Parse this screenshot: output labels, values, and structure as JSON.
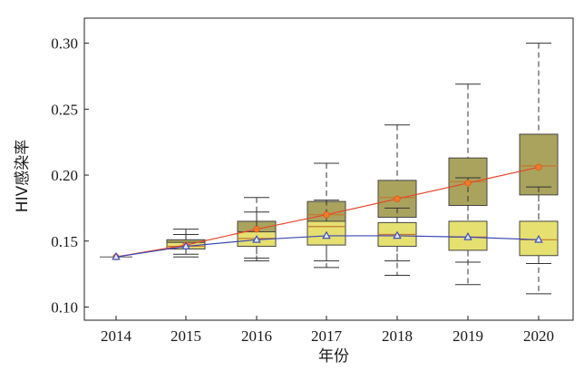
{
  "chart_data": {
    "type": "box",
    "xlabel": "年份",
    "ylabel": "HIV感染率",
    "categories": [
      "2014",
      "2015",
      "2016",
      "2017",
      "2018",
      "2019",
      "2020"
    ],
    "ylim": [
      0.09,
      0.319
    ],
    "yticks": [
      0.1,
      0.15,
      0.2,
      0.25,
      0.3
    ],
    "ytick_labels": [
      "0.10",
      "0.15",
      "0.20",
      "0.25",
      "0.30"
    ],
    "grid": false,
    "box_groups": [
      {
        "name": "",
        "color": "#a9a35e",
        "boxes": [
          null,
          {
            "whisker_low": 0.138,
            "q1": 0.144,
            "median": 0.147,
            "q3": 0.151,
            "whisker_high": 0.159
          },
          {
            "whisker_low": 0.135,
            "q1": 0.151,
            "median": 0.157,
            "q3": 0.165,
            "whisker_high": 0.183
          },
          {
            "whisker_low": 0.135,
            "q1": 0.157,
            "median": 0.17,
            "q3": 0.18,
            "whisker_high": 0.209
          },
          {
            "whisker_low": 0.124,
            "q1": 0.168,
            "median": 0.183,
            "q3": 0.196,
            "whisker_high": 0.238
          },
          {
            "whisker_low": 0.117,
            "q1": 0.177,
            "median": 0.195,
            "q3": 0.213,
            "whisker_high": 0.269
          },
          {
            "whisker_low": 0.11,
            "q1": 0.185,
            "median": 0.207,
            "q3": 0.231,
            "whisker_high": 0.3
          }
        ]
      },
      {
        "name": "",
        "color": "#e5e070",
        "boxes": [
          null,
          {
            "whisker_low": 0.14,
            "q1": 0.144,
            "median": 0.146,
            "q3": 0.149,
            "whisker_high": 0.155
          },
          {
            "whisker_low": 0.137,
            "q1": 0.146,
            "median": 0.152,
            "q3": 0.157,
            "whisker_high": 0.172
          },
          {
            "whisker_low": 0.13,
            "q1": 0.147,
            "median": 0.161,
            "q3": 0.165,
            "whisker_high": 0.181
          },
          {
            "whisker_low": 0.135,
            "q1": 0.146,
            "median": 0.155,
            "q3": 0.164,
            "whisker_high": 0.175
          },
          {
            "whisker_low": 0.134,
            "q1": 0.143,
            "median": 0.153,
            "q3": 0.165,
            "whisker_high": 0.198
          },
          {
            "whisker_low": 0.133,
            "q1": 0.139,
            "median": 0.151,
            "q3": 0.165,
            "whisker_high": 0.191
          }
        ]
      }
    ],
    "series": [
      {
        "marker": "circle",
        "color": "#e8452c",
        "values": [
          0.138,
          0.147,
          0.159,
          0.17,
          0.182,
          0.194,
          0.206
        ]
      },
      {
        "marker": "triangle",
        "color": "#3a47b5",
        "values": [
          0.138,
          0.146,
          0.151,
          0.154,
          0.154,
          0.153,
          0.151
        ]
      }
    ]
  }
}
